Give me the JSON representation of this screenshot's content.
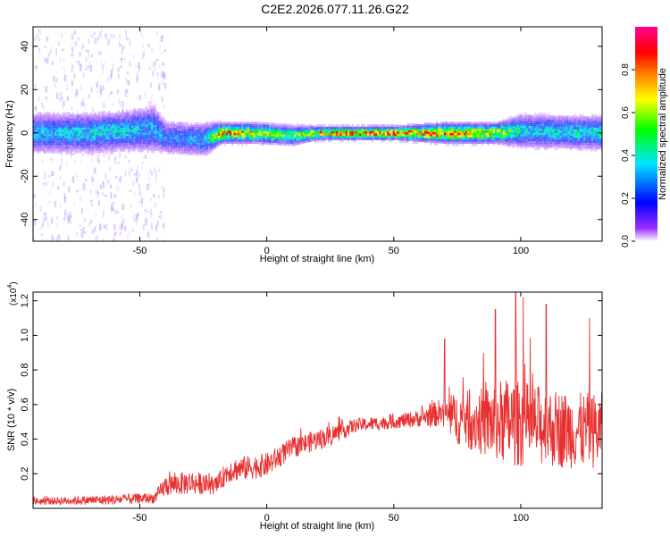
{
  "title": "C2E2.2026.077.11.26.G22",
  "colors": {
    "axis": "#000000",
    "snr_line": "#e83030",
    "background": "#ffffff"
  },
  "chart_data": [
    {
      "type": "heatmap",
      "title": "C2E2.2026.077.11.26.G22",
      "xlabel": "Height of straight line (km)",
      "ylabel": "Frequency (Hz)",
      "xlim": [
        -92,
        132
      ],
      "ylim": [
        -50,
        49
      ],
      "x_ticks": [
        -50,
        0,
        50,
        100
      ],
      "x_tick_labels": [
        "-50",
        "0",
        "50",
        "100"
      ],
      "y_ticks": [
        -40,
        -20,
        0,
        20,
        40
      ],
      "y_tick_labels": [
        "-40",
        "-20",
        "0",
        "20",
        "40"
      ],
      "colorbar": {
        "label": "Normalized spectral amplitude",
        "range": [
          0,
          1
        ],
        "ticks": [
          0.0,
          0.2,
          0.4,
          0.6,
          0.8
        ],
        "tick_labels": [
          "0.0",
          "0.2",
          "0.4",
          "0.6",
          "0.8"
        ],
        "colormap": [
          "#ffffff",
          "#9b30ff",
          "#0000ff",
          "#00e5ff",
          "#00ff00",
          "#ffff00",
          "#ff8000",
          "#ff0000",
          "#ff0090"
        ]
      },
      "band_profile": [
        {
          "x": -92,
          "center": 0.0,
          "halfwidth": 6,
          "peak": 0.35
        },
        {
          "x": -70,
          "center": 0.0,
          "halfwidth": 6,
          "peak": 0.4
        },
        {
          "x": -55,
          "center": 1.0,
          "halfwidth": 6,
          "peak": 0.4
        },
        {
          "x": -45,
          "center": 2.0,
          "halfwidth": 7,
          "peak": 0.35
        },
        {
          "x": -40,
          "center": -2.0,
          "halfwidth": 5,
          "peak": 0.3
        },
        {
          "x": -25,
          "center": -3.0,
          "halfwidth": 5,
          "peak": 0.35
        },
        {
          "x": -18,
          "center": 0.0,
          "halfwidth": 3,
          "peak": 0.85
        },
        {
          "x": -5,
          "center": 0.0,
          "halfwidth": 3,
          "peak": 0.7
        },
        {
          "x": 10,
          "center": -1.0,
          "halfwidth": 3,
          "peak": 0.55
        },
        {
          "x": 20,
          "center": 0.0,
          "halfwidth": 2,
          "peak": 0.8
        },
        {
          "x": 50,
          "center": 0.0,
          "halfwidth": 2,
          "peak": 0.95
        },
        {
          "x": 70,
          "center": 0.0,
          "halfwidth": 3,
          "peak": 0.85
        },
        {
          "x": 90,
          "center": 0.0,
          "halfwidth": 3,
          "peak": 0.75
        },
        {
          "x": 100,
          "center": 1.0,
          "halfwidth": 5,
          "peak": 0.4
        },
        {
          "x": 132,
          "center": 0.0,
          "halfwidth": 5,
          "peak": 0.45
        }
      ]
    },
    {
      "type": "line",
      "xlabel": "Height of straight line (km)",
      "ylabel": "SNR (10 * v/v)",
      "y_multiplier_label": "(x10",
      "y_multiplier_exponent": "4",
      "xlim": [
        -92,
        132
      ],
      "ylim": [
        0,
        1.25
      ],
      "x_ticks": [
        -50,
        0,
        50,
        100
      ],
      "x_tick_labels": [
        "-50",
        "0",
        "50",
        "100"
      ],
      "y_ticks": [
        0.2,
        0.4,
        0.6,
        0.8,
        1.0,
        1.2
      ],
      "y_tick_labels": [
        "0.2",
        "0.4",
        "0.6",
        "0.8",
        "1.0",
        "1.2"
      ],
      "series": [
        {
          "name": "SNR",
          "color": "#e83030",
          "envelope": [
            {
              "x": -92,
              "base": 0.04,
              "noise": 0.02
            },
            {
              "x": -60,
              "base": 0.05,
              "noise": 0.03
            },
            {
              "x": -44,
              "base": 0.06,
              "noise": 0.03
            },
            {
              "x": -40,
              "base": 0.13,
              "noise": 0.06
            },
            {
              "x": -30,
              "base": 0.15,
              "noise": 0.07
            },
            {
              "x": -20,
              "base": 0.13,
              "noise": 0.05
            },
            {
              "x": -15,
              "base": 0.22,
              "noise": 0.07
            },
            {
              "x": 0,
              "base": 0.25,
              "noise": 0.07
            },
            {
              "x": 10,
              "base": 0.35,
              "noise": 0.06
            },
            {
              "x": 25,
              "base": 0.42,
              "noise": 0.06
            },
            {
              "x": 35,
              "base": 0.48,
              "noise": 0.04
            },
            {
              "x": 50,
              "base": 0.5,
              "noise": 0.04
            },
            {
              "x": 60,
              "base": 0.52,
              "noise": 0.05
            },
            {
              "x": 68,
              "base": 0.55,
              "noise": 0.08
            },
            {
              "x": 75,
              "base": 0.52,
              "noise": 0.15
            },
            {
              "x": 85,
              "base": 0.5,
              "noise": 0.2
            },
            {
              "x": 95,
              "base": 0.5,
              "noise": 0.26
            },
            {
              "x": 105,
              "base": 0.48,
              "noise": 0.24
            },
            {
              "x": 120,
              "base": 0.45,
              "noise": 0.22
            },
            {
              "x": 132,
              "base": 0.45,
              "noise": 0.22
            }
          ],
          "peaks": [
            {
              "x": 70,
              "y": 0.98
            },
            {
              "x": 90,
              "y": 1.15
            },
            {
              "x": 98,
              "y": 1.26
            },
            {
              "x": 101,
              "y": 1.22
            },
            {
              "x": 110,
              "y": 1.18
            },
            {
              "x": 127,
              "y": 1.1
            }
          ]
        }
      ]
    }
  ]
}
